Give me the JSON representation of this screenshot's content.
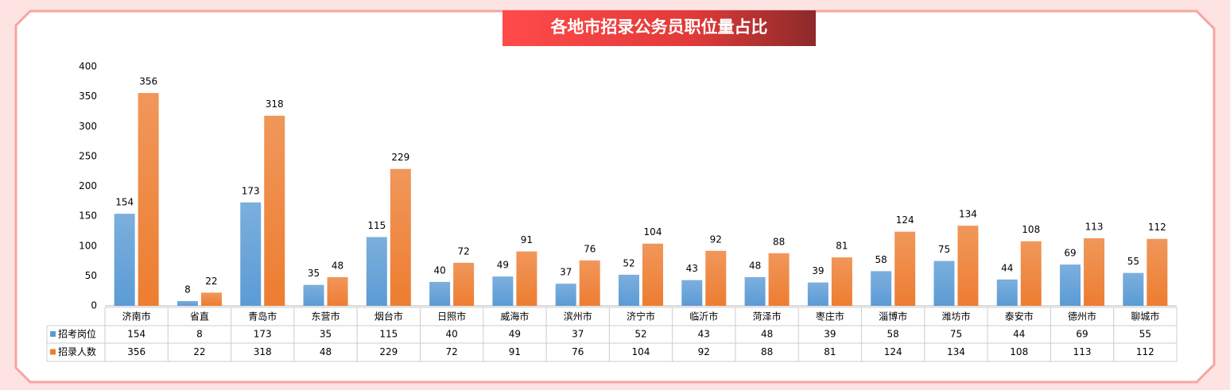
{
  "chart_data": {
    "type": "bar",
    "title": "各地市招录公务员职位量占比",
    "categories": [
      "济南市",
      "省直",
      "青岛市",
      "东营市",
      "烟台市",
      "日照市",
      "威海市",
      "滨州市",
      "济宁市",
      "临沂市",
      "菏泽市",
      "枣庄市",
      "淄博市",
      "潍坊市",
      "泰安市",
      "德州市",
      "聊城市"
    ],
    "series": [
      {
        "name": "招考岗位",
        "color": "#5b9bd5",
        "values": [
          154,
          8,
          173,
          35,
          115,
          40,
          49,
          37,
          52,
          43,
          48,
          39,
          58,
          75,
          44,
          69,
          55
        ]
      },
      {
        "name": "招录人数",
        "color": "#ed7d31",
        "values": [
          356,
          22,
          318,
          48,
          229,
          72,
          91,
          76,
          104,
          92,
          88,
          81,
          124,
          134,
          108,
          113,
          112
        ]
      }
    ],
    "ylim": [
      0,
      400
    ],
    "yticks": [
      0,
      50,
      100,
      150,
      200,
      250,
      300,
      350,
      400
    ],
    "grid": false
  }
}
